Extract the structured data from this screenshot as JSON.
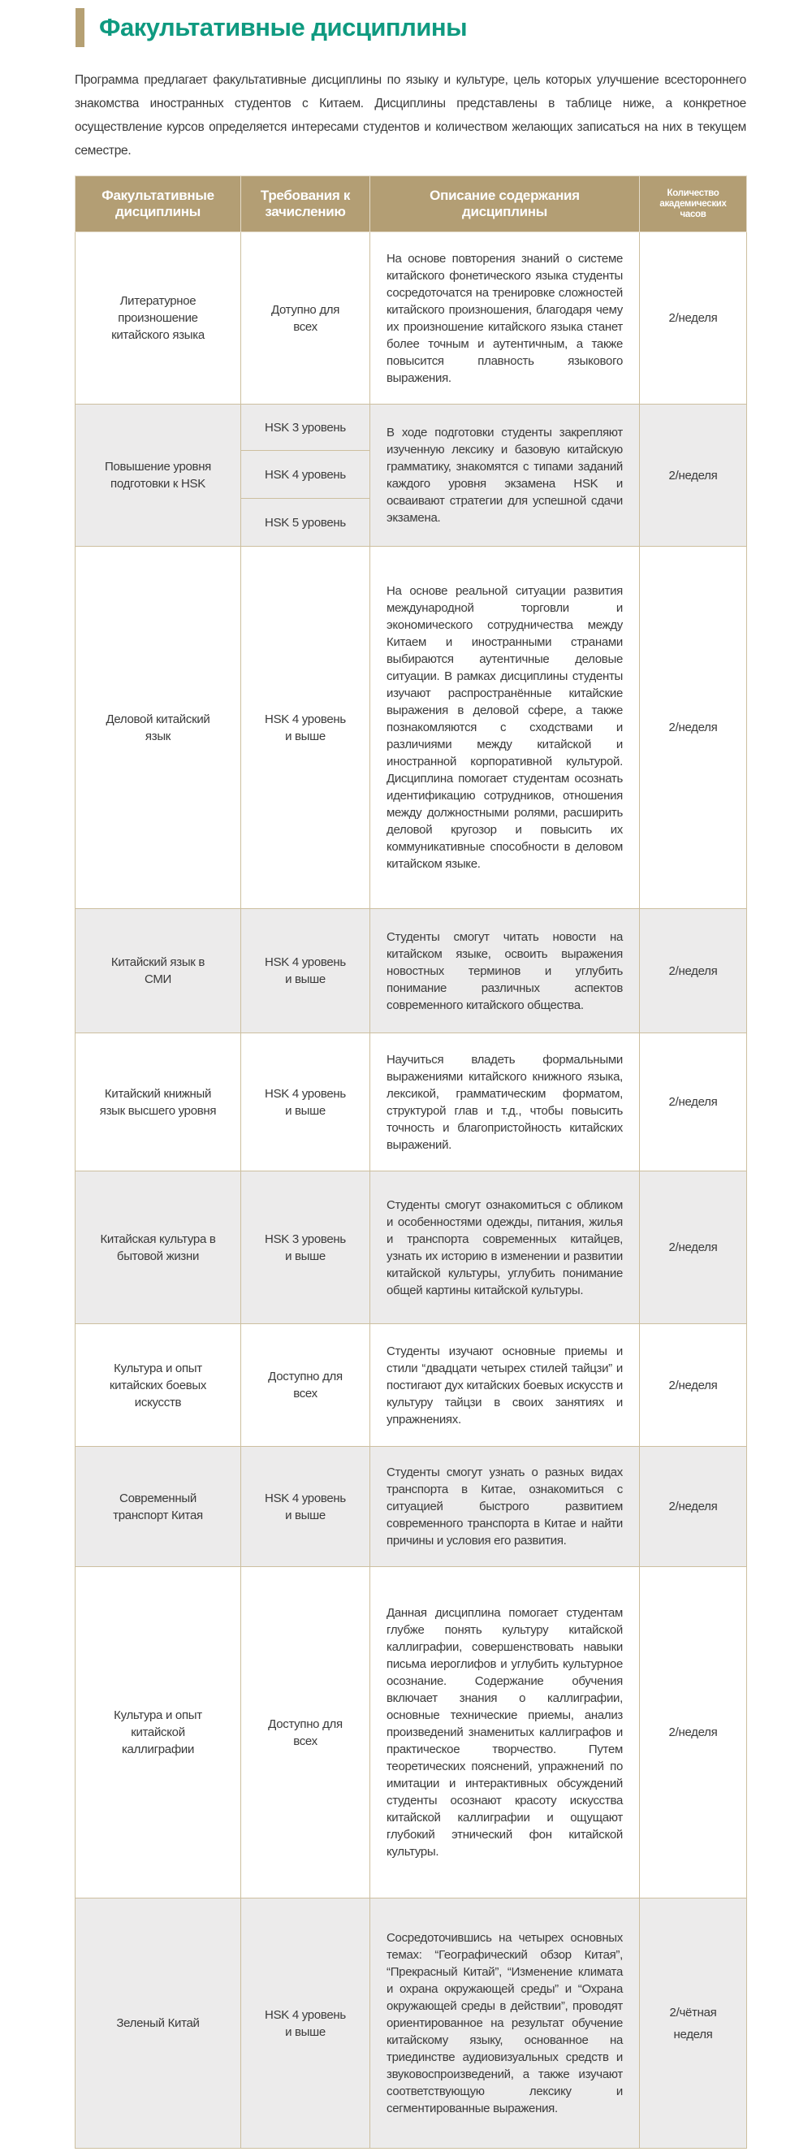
{
  "title": "Факультативные дисциплины",
  "intro": "Программа предлагает факультативные дисциплины по языку и культуре, цель которых улучшение всестороннего знакомства иностранных студентов с Китаем. Дисциплины представлены в таблице ниже, а конкретное осуществление курсов определяется интересами студентов и количеством желающих записаться на них в текущем семестре.",
  "colors": {
    "accent_green": "#0f9a80",
    "header_gold": "#b39e74",
    "row_grey": "#ecebeb"
  },
  "table": {
    "headers": [
      "Факультативные дисциплины",
      "Требования к зачислению",
      "Описание содержания дисциплины",
      "Количество академических часов"
    ],
    "hsk_row": {
      "name": "Повышение уровня подготовки к HSK",
      "levels": [
        "HSK 3 уровень",
        "HSK 4 уровень",
        "HSK 5 уровень"
      ],
      "description": "В ходе подготовки студенты закрепляют изученную лексику и базовую китайскую грамматику, знакомятся с типами заданий каждого уровня экзамена HSK и осваивают стратегии для успешной сдачи экзамена.",
      "hours": "2/неделя"
    },
    "rows": [
      {
        "name": "Литературное произношение китайского языка",
        "requirement": "Дотупно для всех",
        "description": "На основе повторения знаний о системе китайского фонетического языка студенты сосредоточатся на тренировке сложностей китайского произношения, благодаря чему их произношение китайского языка станет более точным и аутентичным, а также повысится плавность языкового выражения.",
        "hours": "2/неделя"
      },
      {
        "name": "Деловой китайский язык",
        "requirement": "HSK 4 уровень и выше",
        "description": "На основе реальной ситуации развития международной торговли и экономического сотрудничества между Китаем и иностранными странами выбираются аутентичные деловые ситуации. В рамках дисциплины студенты изучают распространённые китайские выражения в деловой сфере, а также познакомляются с сходствами и различиями между китайской и иностранной корпоративной культурой. Дисциплина помогает студентам осознать идентификацию сотрудников, отношения между должностными ролями, расширить деловой кругозор и повысить их коммуникативные способности в деловом китайском языке.",
        "hours": "2/неделя"
      },
      {
        "name": "Китайский язык в СМИ",
        "requirement": "HSK 4 уровень и выше",
        "description": "Студенты смогут читать новости на китайском языке, освоить выражения новостных терминов и углубить понимание различных аспектов современного китайского общества.",
        "hours": "2/неделя"
      },
      {
        "name": "Китайский книжный язык высшего уровня",
        "requirement": "HSK 4 уровень и выше",
        "description": "Научиться владеть формальными выражениями китайского книжного языка, лексикой, грамматическим форматом, структурой глав и т.д., чтобы повысить точность и благопристойность китайских выражений.",
        "hours": "2/неделя"
      },
      {
        "name": "Китайская культура в бытовой жизни",
        "requirement": "HSK 3 уровень и выше",
        "description": "Студенты смогут ознакомиться с обликом и особенностями одежды, питания, жилья и транспорта современных китайцев, узнать их историю в изменении и развитии китайской культуры, углубить понимание общей картины китайской культуры.",
        "hours": "2/неделя"
      },
      {
        "name": "Культура и опыт китайских боевых искусств",
        "requirement": "Доступно для всех",
        "description": "Студенты изучают основные приемы и стили “двадцати четырех стилей тайцзи” и постигают дух китайских боевых искусств и культуру тайцзи в своих занятиях и упражнениях.",
        "hours": "2/неделя"
      },
      {
        "name": "Современный транспорт Китая",
        "requirement": "HSK 4 уровень и выше",
        "description": "Студенты смогут узнать о разных видах транспорта в Китае, ознакомиться с ситуацией быстрого развитием современного транспорта в Китае и найти причины и условия его развития.",
        "hours": "2/неделя"
      },
      {
        "name": "Культура и опыт китайской каллиграфии",
        "requirement": "Доступно для всех",
        "description": "Данная дисциплина помогает студентам глубже понять культуру китайской каллиграфии, совершенствовать навыки письма иероглифов и углубить культурное осознание. Содержание обучения включает знания о каллиграфии, основные технические приемы, анализ произведений знаменитых каллиграфов и практическое творчество. Путем теоретических пояснений, упражнений по имитации и интерактивных обсуждений студенты осознают красоту искусства китайской каллиграфии и ощущают глубокий этнический фон китайской культуры.",
        "hours": "2/неделя"
      },
      {
        "name": "Зеленый Китай",
        "requirement": "HSK 4 уровень и выше",
        "description": "Сосредоточившись на четырех основных темах: “Географический обзор Китая”, “Прекрасный Китай”, “Изменение климата и охрана окружающей среды” и “Охрана окружающей среды в действии”, проводят ориентированное на результат обучение китайскому языку, основанное на триединстве аудиовизуальных средств и звуковоспроизведений, а также изучают соответствующую лексику и сегментированные выражения.",
        "hours": "2/чётная неделя"
      }
    ]
  }
}
